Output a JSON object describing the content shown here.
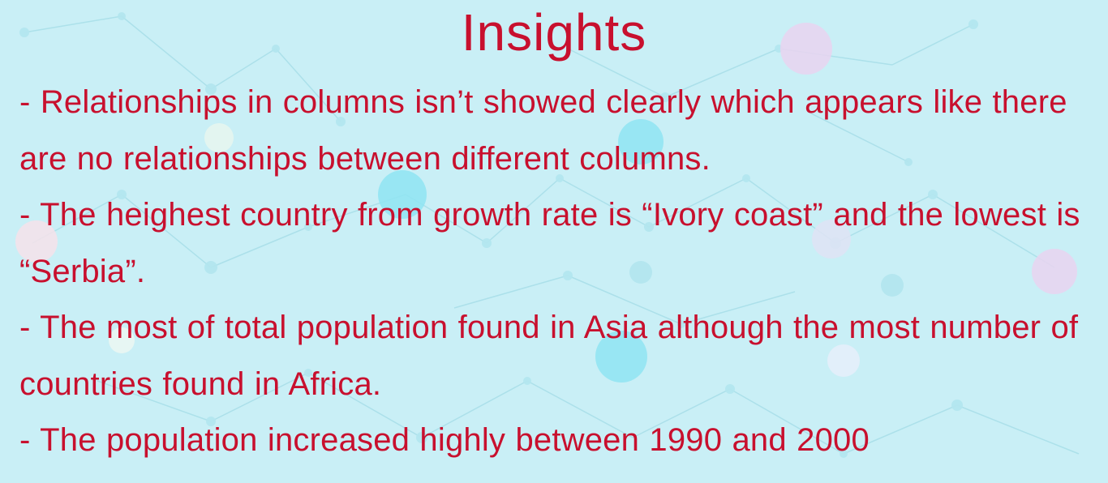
{
  "slide": {
    "title": "Insights",
    "paragraphs": [
      "- Relationships in columns isn’t showed clearly which appears like there are no relationships between different columns.",
      "- The heighest country from growth rate is “Ivory coast” and the lowest is “Serbia”.",
      "- The most of total population found in Asia although the most number of countries found in Africa.",
      "- The population increased highly between 1990 and 2000"
    ]
  },
  "colors": {
    "background": "#c9eff6",
    "text": "#c8102e",
    "network_line": "#a9dfe9",
    "network_node": "#b3e6ef",
    "accent_node_cyan": "#8fe4f2",
    "accent_node_pink": "#e9d4f0"
  }
}
